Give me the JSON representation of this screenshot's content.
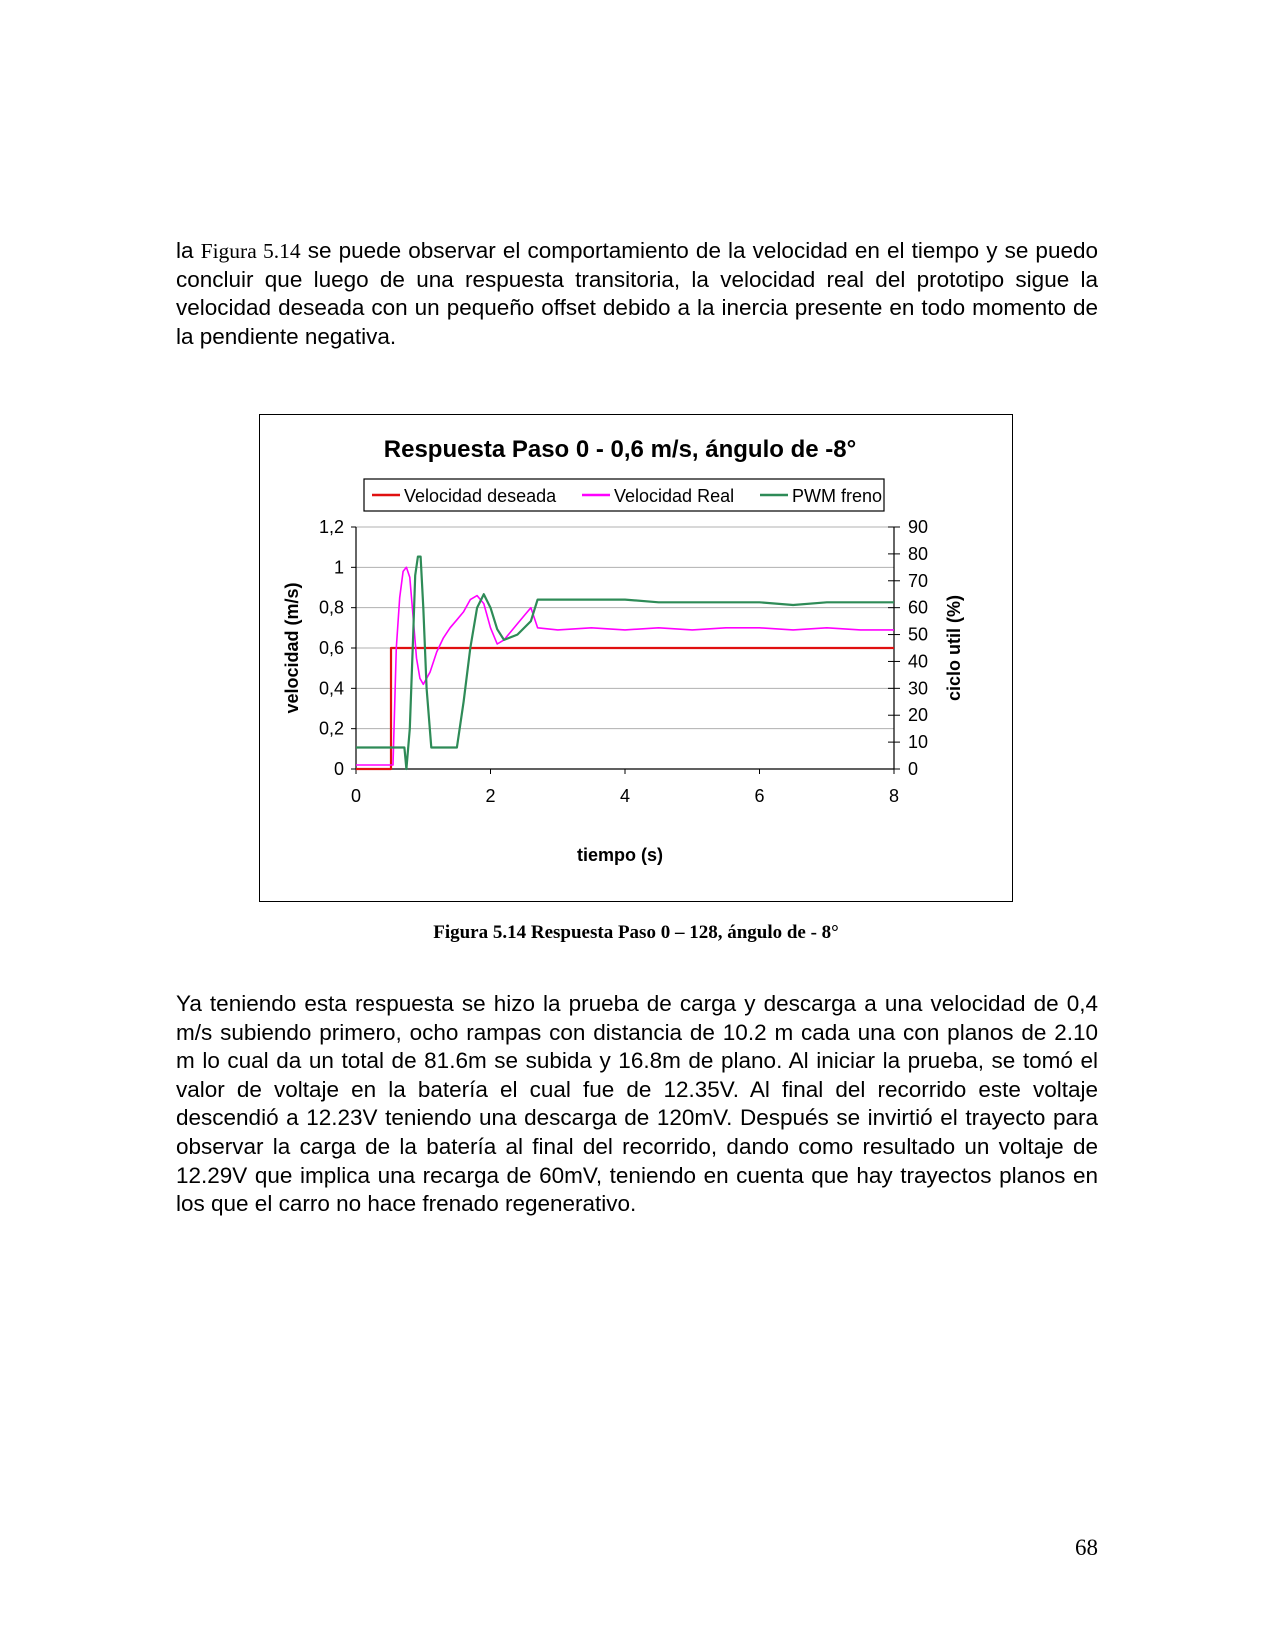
{
  "paragraph1": {
    "lead": "la ",
    "figure_ref": "Figura 5.14",
    "text": "  se puede observar el comportamiento de la velocidad en el tiempo y se puedo concluir que luego de una respuesta transitoria, la velocidad real del prototipo sigue la velocidad deseada con un pequeño offset debido a la inercia presente en todo momento de la pendiente negativa."
  },
  "caption": "Figura 5.14 Respuesta Paso 0 – 128, ángulo de - 8°",
  "paragraph2": "Ya teniendo esta respuesta se hizo la prueba de carga y descarga a una velocidad de 0,4 m/s subiendo primero, ocho rampas con distancia de 10.2 m cada una con planos de 2.10 m lo cual da un total de 81.6m se subida y 16.8m de plano. Al iniciar la prueba, se tomó el valor de voltaje en la batería el cual fue de 12.35V. Al final del recorrido este voltaje descendió a 12.23V teniendo una descarga de 120mV. Después se invirtió el trayecto para observar la carga de la batería al final del recorrido, dando como resultado un voltaje de 12.29V que implica una recarga de 60mV, teniendo en cuenta que hay trayectos planos en los que el carro no hace frenado regenerativo.",
  "page_number": "68",
  "chart_data": {
    "type": "line",
    "title": "Respuesta Paso 0 - 0,6 m/s, ángulo de -8°",
    "xlabel": "tiempo (s)",
    "ylabel": "velocidad (m/s)",
    "y2label": "ciclo util (%)",
    "xlim": [
      0,
      8
    ],
    "ylim": [
      0,
      1.2
    ],
    "y2lim": [
      0,
      90
    ],
    "x_ticks": [
      "0",
      "2",
      "4",
      "6",
      "8"
    ],
    "y_ticks": [
      "0",
      "0,2",
      "0,4",
      "0,6",
      "0,8",
      "1",
      "1,2"
    ],
    "y2_ticks": [
      "0",
      "10",
      "20",
      "30",
      "40",
      "50",
      "60",
      "70",
      "80",
      "90"
    ],
    "grid": true,
    "legend_position": "top",
    "series": [
      {
        "name": "Velocidad deseada",
        "axis": "left",
        "color": "#e01010",
        "x": [
          0,
          0.52,
          0.52,
          8
        ],
        "y": [
          0,
          0,
          0.6,
          0.6
        ]
      },
      {
        "name": "Velocidad Real",
        "axis": "left",
        "color": "#ff00ff",
        "x": [
          0,
          0.55,
          0.6,
          0.65,
          0.7,
          0.75,
          0.8,
          0.85,
          0.9,
          0.95,
          1.0,
          1.1,
          1.2,
          1.3,
          1.4,
          1.5,
          1.6,
          1.7,
          1.8,
          1.9,
          2.0,
          2.1,
          2.2,
          2.3,
          2.4,
          2.5,
          2.6,
          2.7,
          3.0,
          3.5,
          4.0,
          4.5,
          5.0,
          5.5,
          6.0,
          6.5,
          7.0,
          7.5,
          8.0
        ],
        "y": [
          0.02,
          0.02,
          0.6,
          0.85,
          0.98,
          1.0,
          0.95,
          0.75,
          0.55,
          0.45,
          0.42,
          0.48,
          0.58,
          0.65,
          0.7,
          0.74,
          0.78,
          0.84,
          0.86,
          0.82,
          0.7,
          0.62,
          0.64,
          0.68,
          0.72,
          0.76,
          0.8,
          0.7,
          0.69,
          0.7,
          0.69,
          0.7,
          0.69,
          0.7,
          0.7,
          0.69,
          0.7,
          0.69,
          0.69
        ]
      },
      {
        "name": "PWM freno",
        "axis": "right",
        "color": "#2e8b57",
        "x": [
          0,
          0.72,
          0.75,
          0.8,
          0.85,
          0.88,
          0.92,
          0.96,
          1.0,
          1.05,
          1.12,
          1.5,
          1.6,
          1.7,
          1.8,
          1.9,
          2.0,
          2.1,
          2.2,
          2.4,
          2.6,
          2.7,
          4.0,
          4.5,
          6.0,
          6.5,
          7.0,
          8.0
        ],
        "y": [
          8,
          8,
          0,
          15,
          50,
          72,
          79,
          79,
          60,
          30,
          8,
          8,
          25,
          45,
          60,
          65,
          60,
          52,
          48,
          50,
          55,
          63,
          63,
          62,
          62,
          61,
          62,
          62
        ]
      }
    ]
  }
}
